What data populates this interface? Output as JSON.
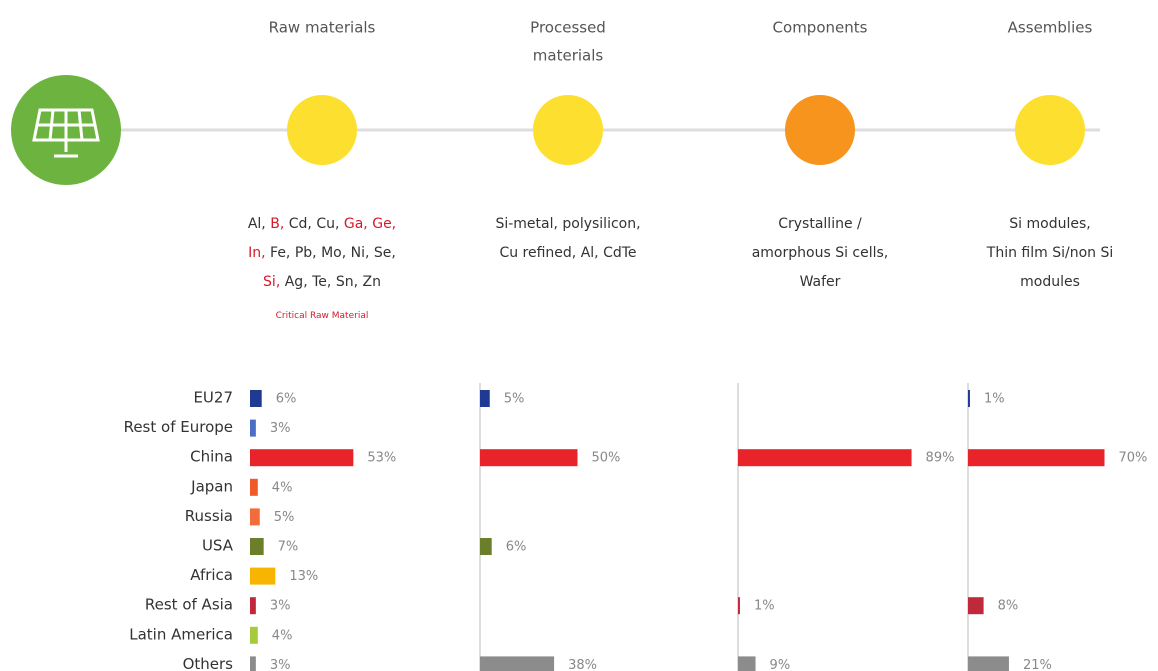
{
  "chart_data": {
    "type": "bar",
    "categories": [
      "EU27",
      "Rest of Europe",
      "China",
      "Japan",
      "Russia",
      "USA",
      "Africa",
      "Rest of Asia",
      "Latin America",
      "Others"
    ],
    "colors": [
      "#1f3a93",
      "#4a6fc4",
      "#e8232a",
      "#f05a28",
      "#f26b3a",
      "#6b7f2a",
      "#f7b500",
      "#c0283c",
      "#a8c93a",
      "#8c8c8c"
    ],
    "critical_note": "Critical Raw Material",
    "series": [
      {
        "title": [
          "Raw materials"
        ],
        "circle_color": "#fde02f",
        "axis_line": false,
        "items": [
          "Al,",
          "B,",
          "Cd,",
          "Cu,",
          "Ga,",
          "Ge,",
          "In,",
          "Fe,",
          "Pb,",
          "Mo,",
          "Ni,",
          "Se,",
          "Si,",
          "Ag,",
          "Te,",
          "Sn,",
          "Zn"
        ],
        "critical": [
          false,
          true,
          false,
          false,
          true,
          true,
          true,
          false,
          false,
          false,
          false,
          false,
          true,
          false,
          false,
          false,
          false
        ],
        "values": [
          6,
          3,
          53,
          4,
          5,
          7,
          13,
          3,
          4,
          3
        ],
        "value_labels": [
          "6%",
          "3%",
          "53%",
          "4%",
          "5%",
          "7%",
          "13%",
          "3%",
          "4%",
          "3%"
        ]
      },
      {
        "title": [
          "Processed",
          "materials"
        ],
        "circle_color": "#fde02f",
        "axis_line": true,
        "description": [
          "Si-metal, polysilicon,",
          "Cu refined, Al, CdTe"
        ],
        "values": [
          5,
          null,
          50,
          null,
          null,
          6,
          null,
          null,
          null,
          38
        ],
        "value_labels": [
          "5%",
          null,
          "50%",
          null,
          null,
          "6%",
          null,
          null,
          null,
          "38%"
        ]
      },
      {
        "title": [
          "Components"
        ],
        "circle_color": "#f7941d",
        "axis_line": true,
        "description": [
          "Crystalline /",
          "amorphous Si cells,",
          "Wafer"
        ],
        "values": [
          null,
          null,
          89,
          null,
          null,
          null,
          null,
          1,
          null,
          9
        ],
        "value_labels": [
          null,
          null,
          "89%",
          null,
          null,
          null,
          null,
          "1%",
          null,
          "9%"
        ]
      },
      {
        "title": [
          "Assemblies"
        ],
        "circle_color": "#fde02f",
        "axis_line": true,
        "description": [
          "Si modules,",
          "Thin film Si/non Si",
          "modules"
        ],
        "values": [
          1,
          null,
          70,
          null,
          null,
          null,
          null,
          8,
          null,
          21
        ],
        "value_labels": [
          "1%",
          null,
          "70%",
          null,
          null,
          null,
          null,
          "8%",
          null,
          "21%"
        ]
      }
    ]
  }
}
